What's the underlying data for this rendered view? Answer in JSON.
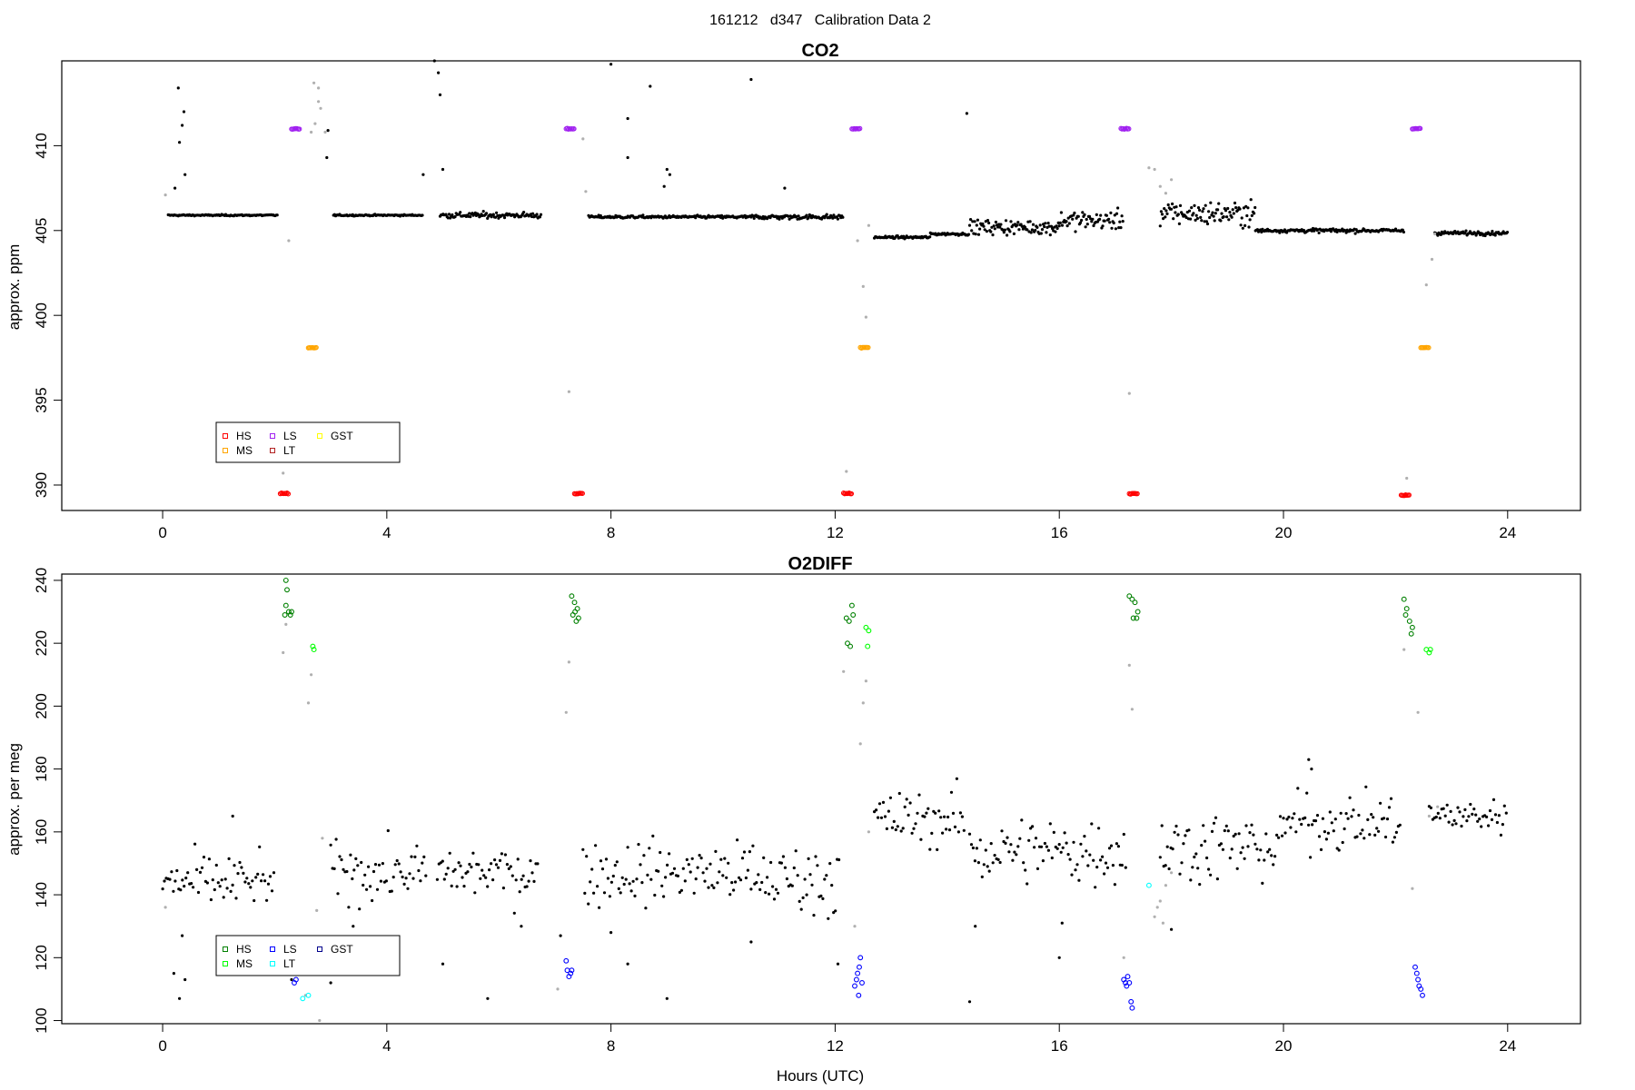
{
  "figure": {
    "suptitle": "161212   d347   Calibration Data 2",
    "xlabel": "Hours (UTC)"
  },
  "chart_data": [
    {
      "type": "scatter",
      "title": "CO2",
      "xlabel": "",
      "ylabel": "approx. ppm",
      "xlim": [
        -1.8,
        25.3
      ],
      "ylim": [
        388.5,
        415
      ],
      "xticks": [
        0,
        4,
        8,
        12,
        16,
        20,
        24
      ],
      "yticks": [
        390,
        395,
        400,
        405,
        410
      ],
      "grid": false,
      "legend": {
        "placement": "bottom-left",
        "entries": [
          {
            "label": "HS",
            "color": "#ff0000"
          },
          {
            "label": "MS",
            "color": "#ffa500"
          },
          {
            "label": "LS",
            "color": "#a020f0"
          },
          {
            "label": "LT",
            "color": "#b22222"
          },
          {
            "label": "GST",
            "color": "#ffff00"
          }
        ]
      },
      "colors": {
        "ambient": "#000000",
        "flush": "#b0b0b0"
      },
      "series": [
        {
          "name": "ambient",
          "segments": [
            {
              "x0": 0.1,
              "x1": 2.05,
              "y": 405.9,
              "sd": 0.03
            },
            {
              "x0": 3.05,
              "x1": 4.65,
              "y": 405.9,
              "sd": 0.03
            },
            {
              "x0": 4.95,
              "x1": 6.75,
              "y": 405.9,
              "sd": 0.12
            },
            {
              "x0": 7.6,
              "x1": 10.5,
              "y": 405.8,
              "sd": 0.06
            },
            {
              "x0": 10.5,
              "x1": 12.15,
              "y": 405.8,
              "sd": 0.1
            },
            {
              "x0": 12.7,
              "x1": 13.7,
              "y": 404.6,
              "sd": 0.05
            },
            {
              "x0": 13.7,
              "x1": 14.4,
              "y": 404.8,
              "sd": 0.06
            },
            {
              "x0": 14.4,
              "x1": 16.0,
              "y": 405.2,
              "sd": 0.3
            },
            {
              "x0": 16.0,
              "x1": 17.15,
              "y": 405.6,
              "sd": 0.4
            },
            {
              "x0": 17.8,
              "x1": 19.5,
              "y": 406.0,
              "sd": 0.5
            },
            {
              "x0": 19.5,
              "x1": 22.15,
              "y": 405.0,
              "sd": 0.08
            },
            {
              "x0": 22.7,
              "x1": 24.0,
              "y": 404.85,
              "sd": 0.08
            }
          ],
          "points": [
            {
              "x": 0.28,
              "y": 413.4
            },
            {
              "x": 0.3,
              "y": 410.2
            },
            {
              "x": 0.35,
              "y": 411.2
            },
            {
              "x": 0.38,
              "y": 412.0
            },
            {
              "x": 0.4,
              "y": 408.3
            },
            {
              "x": 0.22,
              "y": 407.5
            },
            {
              "x": 2.95,
              "y": 410.9
            },
            {
              "x": 2.93,
              "y": 409.3
            },
            {
              "x": 4.65,
              "y": 408.3
            },
            {
              "x": 4.85,
              "y": 415.0
            },
            {
              "x": 4.92,
              "y": 414.3
            },
            {
              "x": 4.95,
              "y": 413.0
            },
            {
              "x": 5.0,
              "y": 408.6
            },
            {
              "x": 8.0,
              "y": 414.8
            },
            {
              "x": 8.3,
              "y": 411.6
            },
            {
              "x": 8.3,
              "y": 409.3
            },
            {
              "x": 8.7,
              "y": 413.5
            },
            {
              "x": 9.0,
              "y": 408.6
            },
            {
              "x": 9.05,
              "y": 408.3
            },
            {
              "x": 8.95,
              "y": 407.6
            },
            {
              "x": 10.5,
              "y": 413.9
            },
            {
              "x": 14.35,
              "y": 411.9
            },
            {
              "x": 11.1,
              "y": 407.5
            }
          ]
        },
        {
          "name": "flush",
          "points": [
            {
              "x": 0.05,
              "y": 407.1
            },
            {
              "x": 2.25,
              "y": 404.4
            },
            {
              "x": 2.15,
              "y": 390.7
            },
            {
              "x": 2.7,
              "y": 413.7
            },
            {
              "x": 2.78,
              "y": 412.6
            },
            {
              "x": 2.82,
              "y": 412.2
            },
            {
              "x": 2.9,
              "y": 410.8
            },
            {
              "x": 2.72,
              "y": 411.3
            },
            {
              "x": 2.78,
              "y": 413.4
            },
            {
              "x": 2.65,
              "y": 410.8
            },
            {
              "x": 7.25,
              "y": 395.5
            },
            {
              "x": 7.5,
              "y": 410.4
            },
            {
              "x": 7.55,
              "y": 407.3
            },
            {
              "x": 12.2,
              "y": 390.8
            },
            {
              "x": 12.4,
              "y": 404.4
            },
            {
              "x": 12.5,
              "y": 401.7
            },
            {
              "x": 12.55,
              "y": 399.9
            },
            {
              "x": 12.6,
              "y": 405.3
            },
            {
              "x": 17.25,
              "y": 395.4
            },
            {
              "x": 17.6,
              "y": 408.7
            },
            {
              "x": 17.7,
              "y": 408.6
            },
            {
              "x": 17.8,
              "y": 407.6
            },
            {
              "x": 17.9,
              "y": 407.2
            },
            {
              "x": 18.0,
              "y": 408.0
            },
            {
              "x": 22.2,
              "y": 390.4
            },
            {
              "x": 22.55,
              "y": 401.8
            },
            {
              "x": 22.65,
              "y": 403.3
            },
            {
              "x": 22.7,
              "y": 404.8
            }
          ]
        },
        {
          "name": "HS",
          "x0": 2.1,
          "x1": 2.25,
          "y": 389.5
        },
        {
          "name": "LS",
          "x0": 2.3,
          "x1": 2.45,
          "y": 411.0
        },
        {
          "name": "MS",
          "x0": 2.6,
          "x1": 2.75,
          "y": 398.1
        },
        {
          "name": "LS",
          "x0": 7.2,
          "x1": 7.35,
          "y": 411.0
        },
        {
          "name": "HS",
          "x0": 7.35,
          "x1": 7.5,
          "y": 389.5
        },
        {
          "name": "HS",
          "x0": 12.15,
          "x1": 12.3,
          "y": 389.5
        },
        {
          "name": "LS",
          "x0": 12.3,
          "x1": 12.45,
          "y": 411.0
        },
        {
          "name": "MS",
          "x0": 12.45,
          "x1": 12.6,
          "y": 398.1
        },
        {
          "name": "LS",
          "x0": 17.1,
          "x1": 17.25,
          "y": 411.0
        },
        {
          "name": "HS",
          "x0": 17.25,
          "x1": 17.4,
          "y": 389.5
        },
        {
          "name": "HS",
          "x0": 22.1,
          "x1": 22.25,
          "y": 389.4
        },
        {
          "name": "LS",
          "x0": 22.3,
          "x1": 22.45,
          "y": 411.0
        },
        {
          "name": "MS",
          "x0": 22.45,
          "x1": 22.6,
          "y": 398.1
        }
      ]
    },
    {
      "type": "scatter",
      "title": "O2DIFF",
      "xlabel": "Hours (UTC)",
      "ylabel": "approx. per meg",
      "xlim": [
        -1.8,
        25.3
      ],
      "ylim": [
        99,
        242
      ],
      "xticks": [
        0,
        4,
        8,
        12,
        16,
        20,
        24
      ],
      "yticks": [
        100,
        120,
        140,
        160,
        180,
        200,
        220,
        240
      ],
      "grid": false,
      "legend": {
        "placement": "bottom-left",
        "entries": [
          {
            "label": "HS",
            "color": "#008000"
          },
          {
            "label": "MS",
            "color": "#00ff00"
          },
          {
            "label": "LS",
            "color": "#0000ff"
          },
          {
            "label": "LT",
            "color": "#00ffff"
          },
          {
            "label": "GST",
            "color": "#00008b"
          }
        ]
      },
      "colors": {
        "ambient": "#000000",
        "flush": "#b0b0b0"
      },
      "series": [
        {
          "name": "ambient",
          "segments": [
            {
              "x0": 0.0,
              "x1": 2.0,
              "y": 144,
              "sd": 6
            },
            {
              "x0": 3.0,
              "x1": 4.7,
              "y": 147,
              "sd": 6
            },
            {
              "x0": 4.9,
              "x1": 6.7,
              "y": 147,
              "sd": 6
            },
            {
              "x0": 7.5,
              "x1": 10.5,
              "y": 147,
              "sd": 7
            },
            {
              "x0": 10.5,
              "x1": 12.1,
              "y": 145,
              "sd": 8
            },
            {
              "x0": 12.7,
              "x1": 14.3,
              "y": 164,
              "sd": 6
            },
            {
              "x0": 14.4,
              "x1": 17.2,
              "y": 154,
              "sd": 8
            },
            {
              "x0": 17.8,
              "x1": 20.0,
              "y": 155,
              "sd": 8
            },
            {
              "x0": 20.0,
              "x1": 22.1,
              "y": 163,
              "sd": 6
            },
            {
              "x0": 22.6,
              "x1": 24.0,
              "y": 165,
              "sd": 4
            }
          ],
          "points": [
            {
              "x": 0.3,
              "y": 107
            },
            {
              "x": 0.2,
              "y": 115
            },
            {
              "x": 0.4,
              "y": 113
            },
            {
              "x": 0.35,
              "y": 127
            },
            {
              "x": 2.3,
              "y": 113
            },
            {
              "x": 3.0,
              "y": 112
            },
            {
              "x": 3.4,
              "y": 130
            },
            {
              "x": 5.0,
              "y": 118
            },
            {
              "x": 5.8,
              "y": 107
            },
            {
              "x": 6.4,
              "y": 130
            },
            {
              "x": 7.1,
              "y": 127
            },
            {
              "x": 8.3,
              "y": 118
            },
            {
              "x": 8.0,
              "y": 128
            },
            {
              "x": 9.0,
              "y": 107
            },
            {
              "x": 10.5,
              "y": 125
            },
            {
              "x": 12.05,
              "y": 118
            },
            {
              "x": 14.4,
              "y": 106
            },
            {
              "x": 14.5,
              "y": 130
            },
            {
              "x": 16.0,
              "y": 120
            },
            {
              "x": 16.05,
              "y": 131
            },
            {
              "x": 18.0,
              "y": 129
            },
            {
              "x": 20.5,
              "y": 180
            },
            {
              "x": 20.45,
              "y": 183
            },
            {
              "x": 1.25,
              "y": 165
            }
          ]
        },
        {
          "name": "flush",
          "points": [
            {
              "x": 0.05,
              "y": 136
            },
            {
              "x": 2.15,
              "y": 217
            },
            {
              "x": 2.2,
              "y": 226
            },
            {
              "x": 2.55,
              "y": 108
            },
            {
              "x": 2.6,
              "y": 201
            },
            {
              "x": 2.65,
              "y": 210
            },
            {
              "x": 2.75,
              "y": 135
            },
            {
              "x": 2.85,
              "y": 158
            },
            {
              "x": 2.8,
              "y": 100
            },
            {
              "x": 7.25,
              "y": 214
            },
            {
              "x": 7.2,
              "y": 198
            },
            {
              "x": 7.05,
              "y": 110
            },
            {
              "x": 12.15,
              "y": 211
            },
            {
              "x": 12.45,
              "y": 188
            },
            {
              "x": 12.5,
              "y": 201
            },
            {
              "x": 12.55,
              "y": 208
            },
            {
              "x": 12.6,
              "y": 160
            },
            {
              "x": 12.35,
              "y": 130
            },
            {
              "x": 17.25,
              "y": 213
            },
            {
              "x": 17.3,
              "y": 199
            },
            {
              "x": 17.15,
              "y": 120
            },
            {
              "x": 17.7,
              "y": 133
            },
            {
              "x": 17.75,
              "y": 136
            },
            {
              "x": 17.8,
              "y": 138
            },
            {
              "x": 17.9,
              "y": 143
            },
            {
              "x": 18.0,
              "y": 147
            },
            {
              "x": 17.85,
              "y": 131
            },
            {
              "x": 22.15,
              "y": 218
            },
            {
              "x": 22.4,
              "y": 198
            },
            {
              "x": 22.6,
              "y": 165
            },
            {
              "x": 22.75,
              "y": 168
            },
            {
              "x": 22.3,
              "y": 142
            }
          ]
        },
        {
          "name": "HS",
          "x": [
            2.2,
            2.22,
            2.25,
            2.2,
            2.28,
            2.3,
            2.18
          ],
          "y": [
            240,
            237,
            230,
            232,
            229,
            230,
            229
          ]
        },
        {
          "name": "MS",
          "x": [
            2.68,
            2.7
          ],
          "y": [
            219,
            218
          ]
        },
        {
          "name": "LS",
          "x": [
            2.35,
            2.38
          ],
          "y": [
            112,
            113
          ]
        },
        {
          "name": "LT",
          "x": [
            2.5,
            2.6
          ],
          "y": [
            107,
            108
          ]
        },
        {
          "name": "HS",
          "x": [
            7.3,
            7.35,
            7.4,
            7.32,
            7.38,
            7.42,
            7.36
          ],
          "y": [
            235,
            233,
            231,
            229,
            227,
            228,
            230
          ]
        },
        {
          "name": "LS",
          "x": [
            7.2,
            7.22,
            7.25,
            7.28,
            7.3
          ],
          "y": [
            119,
            116,
            114,
            115,
            116
          ]
        },
        {
          "name": "HS",
          "x": [
            12.2,
            12.25,
            12.3,
            12.32,
            12.22,
            12.27
          ],
          "y": [
            228,
            227,
            232,
            229,
            220,
            219
          ]
        },
        {
          "name": "MS",
          "x": [
            12.55,
            12.6,
            12.58
          ],
          "y": [
            225,
            224,
            219
          ]
        },
        {
          "name": "LS",
          "x": [
            12.35,
            12.38,
            12.4,
            12.43,
            12.45,
            12.48,
            12.42
          ],
          "y": [
            111,
            113,
            115,
            117,
            120,
            112,
            108
          ]
        },
        {
          "name": "HS",
          "x": [
            17.25,
            17.3,
            17.35,
            17.4,
            17.32,
            17.38
          ],
          "y": [
            235,
            234,
            233,
            230,
            228,
            228
          ]
        },
        {
          "name": "LS",
          "x": [
            17.15,
            17.18,
            17.2,
            17.22,
            17.25,
            17.28,
            17.3
          ],
          "y": [
            113,
            112,
            111,
            114,
            112,
            106,
            104
          ]
        },
        {
          "name": "LT",
          "x": [
            17.6
          ],
          "y": [
            143
          ]
        },
        {
          "name": "HS",
          "x": [
            22.15,
            22.2,
            22.25,
            22.3,
            22.18,
            22.28
          ],
          "y": [
            234,
            231,
            227,
            225,
            229,
            223
          ]
        },
        {
          "name": "MS",
          "x": [
            22.55,
            22.6,
            22.62
          ],
          "y": [
            218,
            217,
            218
          ]
        },
        {
          "name": "LS",
          "x": [
            22.35,
            22.38,
            22.4,
            22.42,
            22.45,
            22.48
          ],
          "y": [
            117,
            115,
            113,
            111,
            110,
            108
          ]
        }
      ]
    }
  ]
}
